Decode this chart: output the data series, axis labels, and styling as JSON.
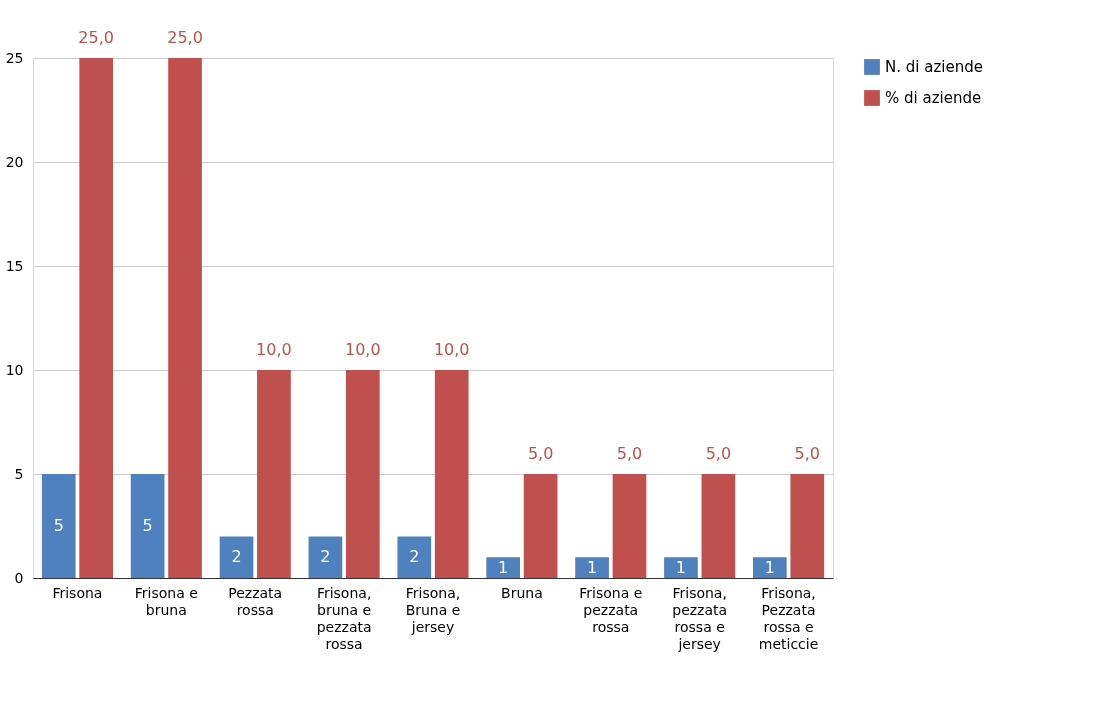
{
  "chart_data": {
    "type": "bar",
    "categories": [
      "Frisona",
      "Frisona e bruna",
      "Pezzata rossa",
      "Frisona, bruna e pezzata rossa",
      "Frisona, Bruna e jersey",
      "Bruna",
      "Frisona e pezzata rossa",
      "Frisona, pezzata rossa e jersey",
      "Frisona, Pezzata rossa e meticcie"
    ],
    "series": [
      {
        "name": "N. di aziende",
        "color": "#4e81bd",
        "values": [
          5,
          5,
          2,
          2,
          2,
          1,
          1,
          1,
          1
        ],
        "value_labels": [
          "5",
          "5",
          "2",
          "2",
          "2",
          "1",
          "1",
          "1",
          "1"
        ]
      },
      {
        "name": "% di aziende",
        "color": "#c0504d",
        "values": [
          25,
          25,
          10,
          10,
          10,
          5,
          5,
          5,
          5
        ],
        "value_labels": [
          "25,0",
          "25,0",
          "10,0",
          "10,0",
          "10,0",
          "5,0",
          "5,0",
          "5,0",
          "5,0"
        ]
      }
    ],
    "ylim": [
      0,
      25
    ],
    "yticks": [
      0,
      5,
      10,
      15,
      20,
      25
    ],
    "grid": "y",
    "legend": "top right"
  }
}
